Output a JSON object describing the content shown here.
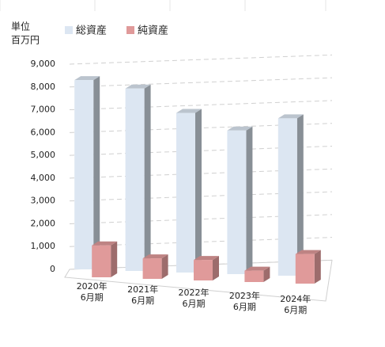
{
  "chart_data": {
    "type": "bar3d",
    "unit_label": [
      "単位",
      "百万円"
    ],
    "categories": [
      [
        "2020年",
        "6月期"
      ],
      [
        "2021年",
        "6月期"
      ],
      [
        "2022年",
        "6月期"
      ],
      [
        "2023年",
        "6月期"
      ],
      [
        "2024年",
        "6月期"
      ]
    ],
    "series": [
      {
        "name": "総資産",
        "color": "#dce6f2",
        "values": [
          8300,
          8000,
          7000,
          6300,
          6900
        ]
      },
      {
        "name": "純資産",
        "color": "#e09a9a",
        "values": [
          1400,
          900,
          900,
          500,
          1300
        ]
      }
    ],
    "ylim": [
      0,
      9000
    ],
    "yticks": [
      0,
      {
        "value": 1000,
        "label": "1,000"
      },
      {
        "value": 2000,
        "label": "2,000"
      },
      {
        "value": 3000,
        "label": "3,000"
      },
      {
        "value": 4000,
        "label": "4,000"
      },
      {
        "value": 5000,
        "label": "5,000"
      },
      {
        "value": 6000,
        "label": "6,000"
      },
      {
        "value": 7000,
        "label": "7,000"
      },
      {
        "value": 8000,
        "label": "8,000"
      },
      {
        "value": 9000,
        "label": "9,000"
      }
    ],
    "grid": true
  }
}
